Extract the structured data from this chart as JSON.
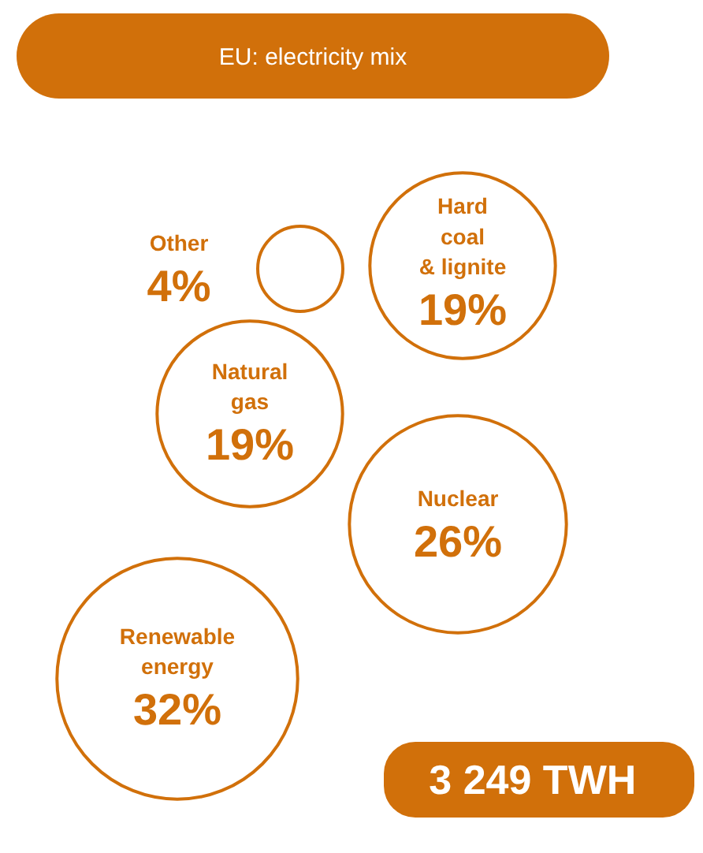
{
  "chart_data": {
    "type": "other",
    "title": "EU: electricity mix",
    "categories": [
      "Other",
      "Hard\ncoal\n& lignite",
      "Natural\ngas",
      "Nuclear",
      "Renewable\nenergy"
    ],
    "values": [
      4,
      19,
      19,
      26,
      32
    ],
    "value_labels": [
      "4%",
      "19%",
      "19%",
      "26%",
      "32%"
    ],
    "color": "#d1700a",
    "annotations": [
      "3 249  TWH"
    ]
  }
}
